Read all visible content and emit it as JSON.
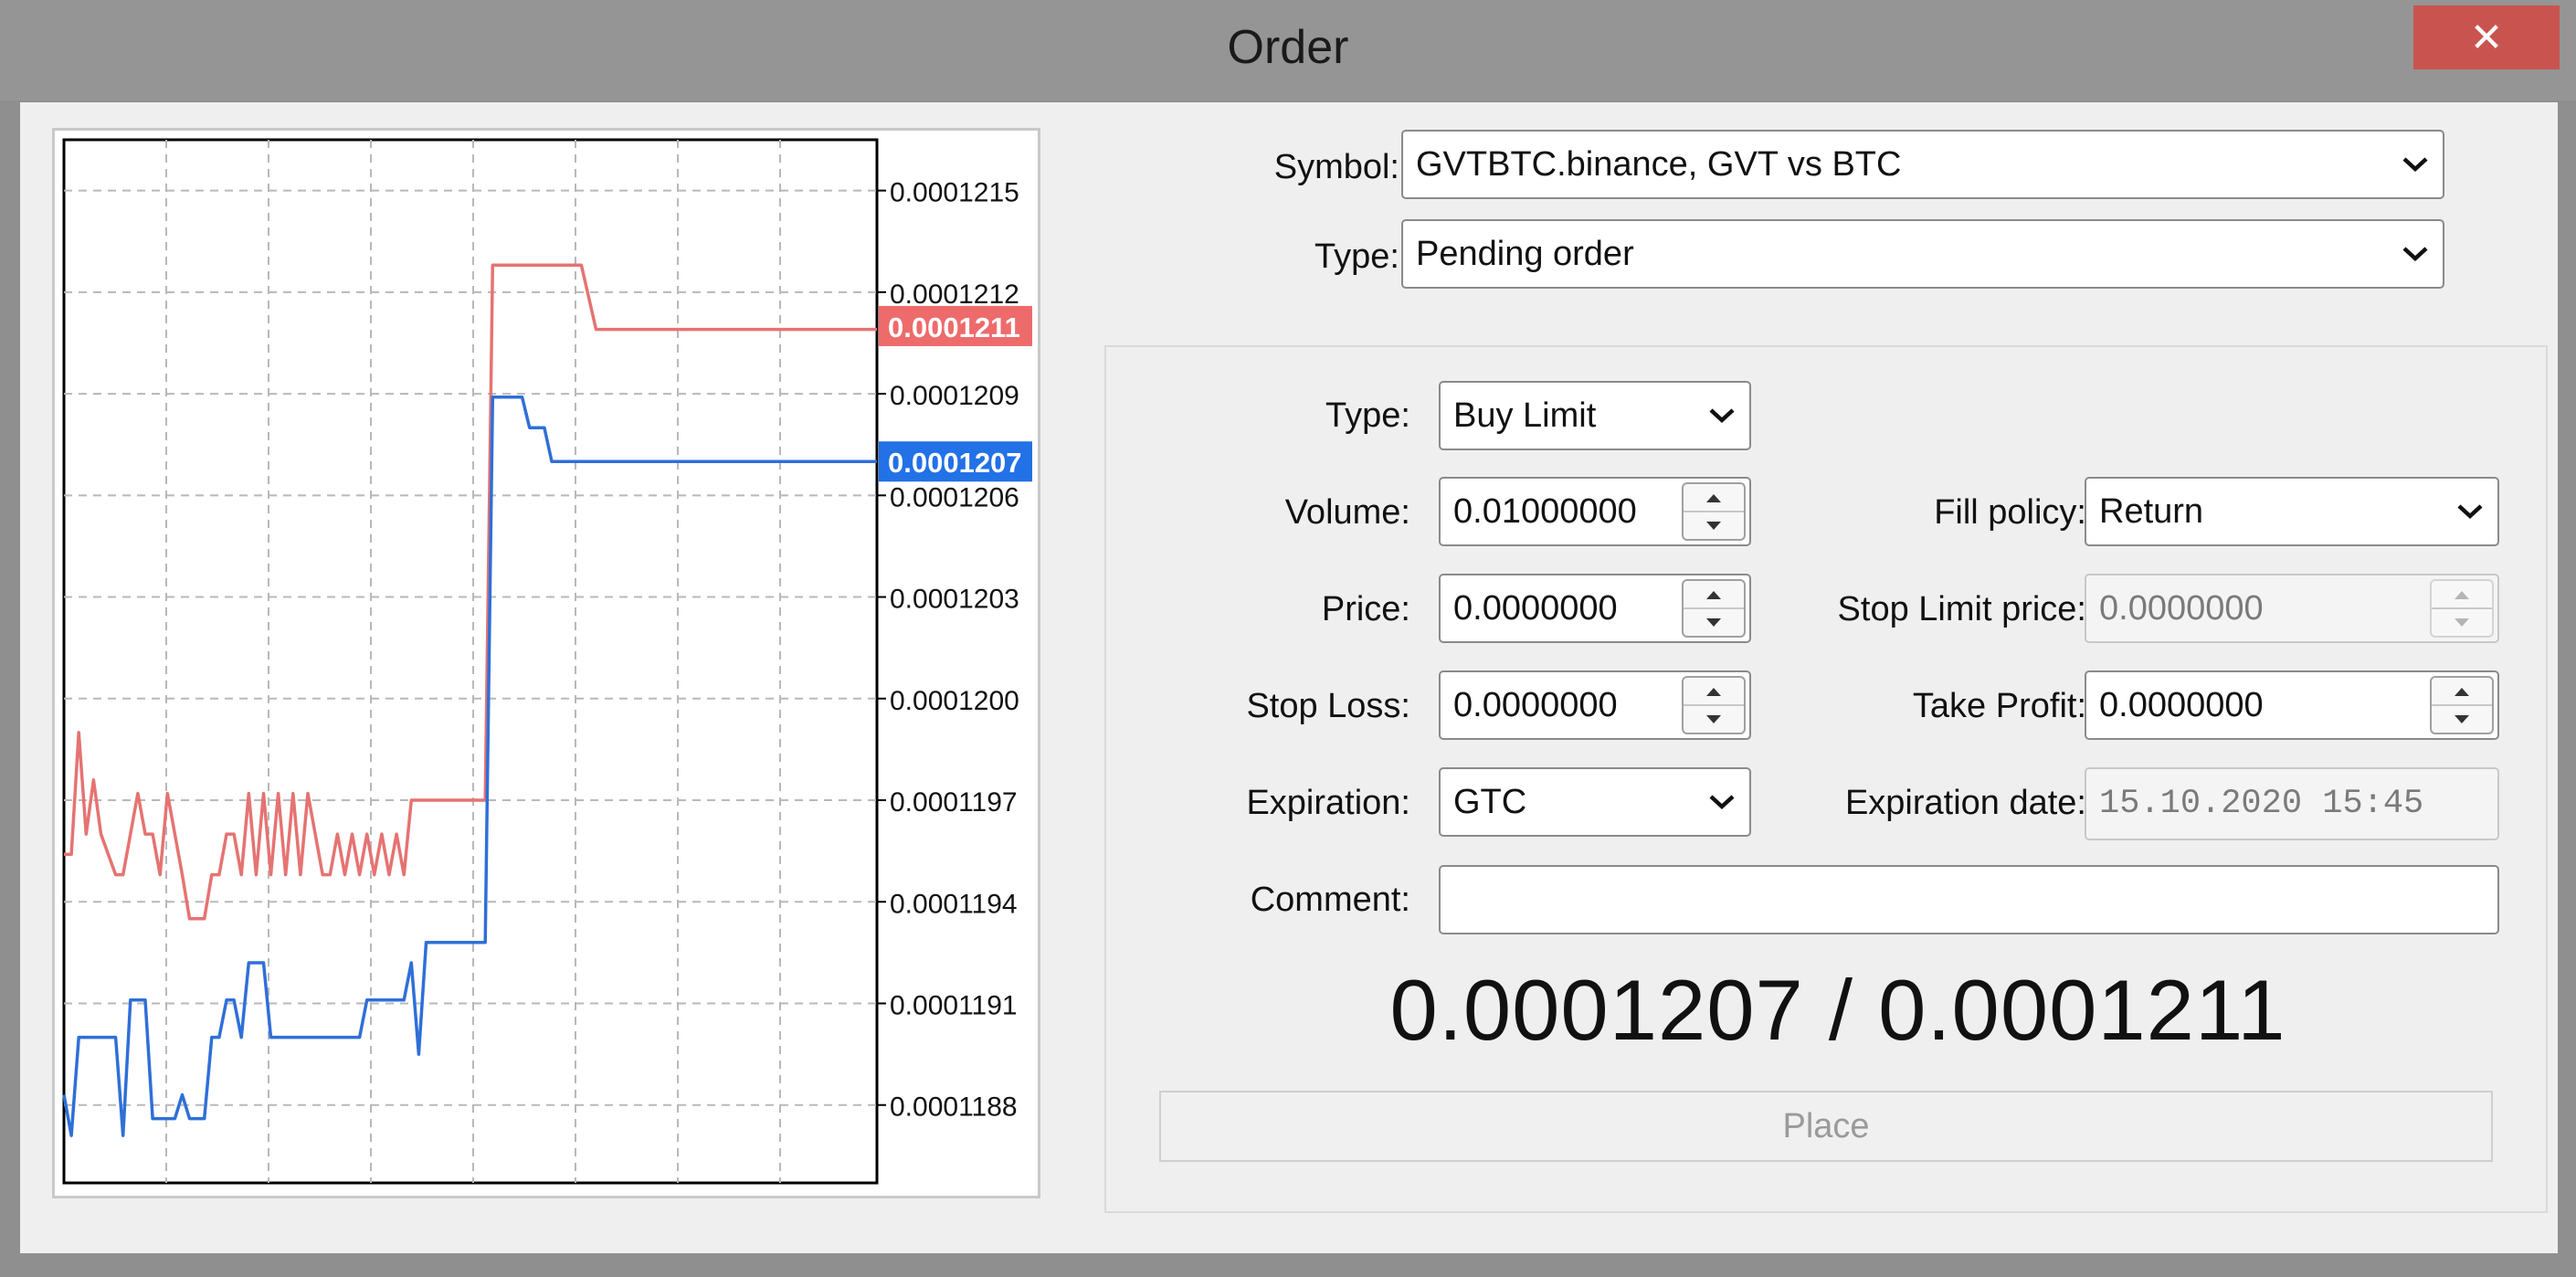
{
  "window": {
    "title": "Order",
    "close_glyph": "✕"
  },
  "form": {
    "symbol_label": "Symbol:",
    "symbol_value": "GVTBTC.binance, GVT vs BTC",
    "type_label": "Type:",
    "type_value": "Pending order",
    "order_type_label": "Type:",
    "order_type_value": "Buy Limit",
    "volume_label": "Volume:",
    "volume_value": "0.01000000",
    "fill_policy_label": "Fill policy:",
    "fill_policy_value": "Return",
    "price_label": "Price:",
    "price_value": "0.0000000",
    "stop_limit_label": "Stop Limit price:",
    "stop_limit_value": "0.0000000",
    "stop_loss_label": "Stop Loss:",
    "stop_loss_value": "0.0000000",
    "take_profit_label": "Take Profit:",
    "take_profit_value": "0.0000000",
    "expiration_label": "Expiration:",
    "expiration_value": "GTC",
    "expiration_date_label": "Expiration date:",
    "expiration_date_value": "15.10.2020 15:45",
    "comment_label": "Comment:",
    "comment_value": "",
    "quote": "0.0001207 / 0.0001211",
    "place_label": "Place"
  },
  "colors": {
    "bid": "#2f6fd8",
    "ask": "#e57372",
    "bid_tag": "#2271e6",
    "ask_tag": "#ee6b6b"
  },
  "chart_data": {
    "type": "line",
    "y_ticks": [
      "0.0001215",
      "0.0001212",
      "0.0001209",
      "0.0001206",
      "0.0001203",
      "0.0001200",
      "0.0001197",
      "0.0001194",
      "0.0001191",
      "0.0001188"
    ],
    "ylim": [
      0.00011857,
      0.00012165
    ],
    "grid": true,
    "x_count": 110,
    "series": [
      {
        "role": "ask",
        "values": [
          [
            0,
            0.00011954
          ],
          [
            1,
            0.00011954
          ],
          [
            2,
            0.0001199
          ],
          [
            3,
            0.0001196
          ],
          [
            4,
            0.00011976
          ],
          [
            5,
            0.0001196
          ],
          [
            6,
            0.00011954
          ],
          [
            7,
            0.00011948
          ],
          [
            8,
            0.00011948
          ],
          [
            9,
            0.0001196
          ],
          [
            10,
            0.00011972
          ],
          [
            11,
            0.0001196
          ],
          [
            12,
            0.0001196
          ],
          [
            13,
            0.00011948
          ],
          [
            14,
            0.00011972
          ],
          [
            15,
            0.0001196
          ],
          [
            16,
            0.00011948
          ],
          [
            17,
            0.00011935
          ],
          [
            18,
            0.00011935
          ],
          [
            19,
            0.00011935
          ],
          [
            20,
            0.00011948
          ],
          [
            21,
            0.00011948
          ],
          [
            22,
            0.0001196
          ],
          [
            23,
            0.0001196
          ],
          [
            24,
            0.00011948
          ],
          [
            25,
            0.00011972
          ],
          [
            26,
            0.00011948
          ],
          [
            27,
            0.00011972
          ],
          [
            28,
            0.00011948
          ],
          [
            29,
            0.00011972
          ],
          [
            30,
            0.00011948
          ],
          [
            31,
            0.00011972
          ],
          [
            32,
            0.00011948
          ],
          [
            33,
            0.00011972
          ],
          [
            34,
            0.0001196
          ],
          [
            35,
            0.00011948
          ],
          [
            36,
            0.00011948
          ],
          [
            37,
            0.0001196
          ],
          [
            38,
            0.00011948
          ],
          [
            39,
            0.0001196
          ],
          [
            40,
            0.00011948
          ],
          [
            41,
            0.0001196
          ],
          [
            42,
            0.00011948
          ],
          [
            43,
            0.0001196
          ],
          [
            44,
            0.00011948
          ],
          [
            45,
            0.0001196
          ],
          [
            46,
            0.00011948
          ],
          [
            47,
            0.0001197
          ],
          [
            48,
            0.0001197
          ],
          [
            56,
            0.0001197
          ],
          [
            57,
            0.0001197
          ],
          [
            58,
            0.00012128
          ],
          [
            66,
            0.00012128
          ],
          [
            67,
            0.00012128
          ],
          [
            68,
            0.00012128
          ],
          [
            69,
            0.00012128
          ],
          [
            70,
            0.00012128
          ],
          [
            72,
            0.00012109
          ],
          [
            110,
            0.00012109
          ]
        ]
      },
      {
        "role": "bid",
        "values": [
          [
            0,
            0.00011883
          ],
          [
            1,
            0.00011871
          ],
          [
            2,
            0.000119
          ],
          [
            3,
            0.000119
          ],
          [
            4,
            0.000119
          ],
          [
            5,
            0.000119
          ],
          [
            6,
            0.000119
          ],
          [
            7,
            0.000119
          ],
          [
            8,
            0.00011871
          ],
          [
            9,
            0.00011911
          ],
          [
            10,
            0.00011911
          ],
          [
            11,
            0.00011911
          ],
          [
            12,
            0.00011876
          ],
          [
            13,
            0.00011876
          ],
          [
            14,
            0.00011876
          ],
          [
            15,
            0.00011876
          ],
          [
            16,
            0.00011883
          ],
          [
            17,
            0.00011876
          ],
          [
            18,
            0.00011876
          ],
          [
            19,
            0.00011876
          ],
          [
            20,
            0.000119
          ],
          [
            21,
            0.000119
          ],
          [
            22,
            0.00011911
          ],
          [
            23,
            0.00011911
          ],
          [
            24,
            0.000119
          ],
          [
            25,
            0.00011922
          ],
          [
            26,
            0.00011922
          ],
          [
            27,
            0.00011922
          ],
          [
            28,
            0.000119
          ],
          [
            29,
            0.000119
          ],
          [
            30,
            0.000119
          ],
          [
            31,
            0.000119
          ],
          [
            32,
            0.000119
          ],
          [
            33,
            0.000119
          ],
          [
            34,
            0.000119
          ],
          [
            35,
            0.000119
          ],
          [
            36,
            0.000119
          ],
          [
            37,
            0.000119
          ],
          [
            38,
            0.000119
          ],
          [
            39,
            0.000119
          ],
          [
            40,
            0.000119
          ],
          [
            41,
            0.00011911
          ],
          [
            42,
            0.00011911
          ],
          [
            43,
            0.00011911
          ],
          [
            44,
            0.00011911
          ],
          [
            45,
            0.00011911
          ],
          [
            46,
            0.00011911
          ],
          [
            47,
            0.00011922
          ],
          [
            48,
            0.00011895
          ],
          [
            49,
            0.00011928
          ],
          [
            50,
            0.00011928
          ],
          [
            56,
            0.00011928
          ],
          [
            57,
            0.00011928
          ],
          [
            58,
            0.00012089
          ],
          [
            62,
            0.00012089
          ],
          [
            63,
            0.0001208
          ],
          [
            64,
            0.0001208
          ],
          [
            65,
            0.0001208
          ],
          [
            66,
            0.0001207
          ],
          [
            110,
            0.0001207
          ]
        ]
      }
    ],
    "tags": [
      {
        "role": "ask",
        "label": "0.0001211",
        "value": 0.0001211
      },
      {
        "role": "bid",
        "label": "0.0001207",
        "value": 0.0001207
      }
    ]
  }
}
